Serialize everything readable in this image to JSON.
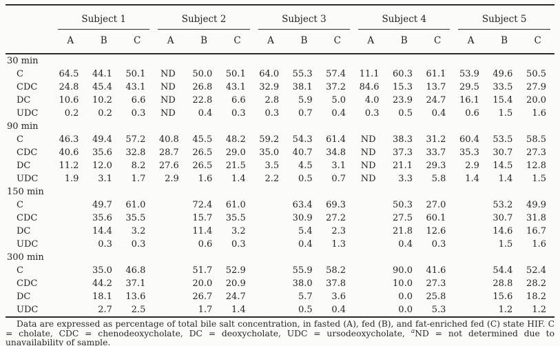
{
  "colors": {
    "background": "#fbfbf9",
    "text": "#222222",
    "rule": "#2a2a2a"
  },
  "table": {
    "subjects": [
      "Subject 1",
      "Subject 2",
      "Subject 3",
      "Subject 4",
      "Subject 5"
    ],
    "sub_columns": [
      "A",
      "B",
      "C"
    ],
    "groups": [
      {
        "label": "30 min",
        "rows": [
          {
            "label": "C",
            "values": [
              "64.5",
              "44.1",
              "50.1",
              "ND",
              "50.0",
              "50.1",
              "64.0",
              "55.3",
              "57.4",
              "11.1",
              "60.3",
              "61.1",
              "53.9",
              "49.6",
              "50.5"
            ]
          },
          {
            "label": "CDC",
            "values": [
              "24.8",
              "45.4",
              "43.1",
              "ND",
              "26.8",
              "43.1",
              "32.9",
              "38.1",
              "37.2",
              "84.6",
              "15.3",
              "13.7",
              "29.5",
              "33.5",
              "27.9"
            ]
          },
          {
            "label": "DC",
            "values": [
              "10.6",
              "10.2",
              "6.6",
              "ND",
              "22.8",
              "6.6",
              "2.8",
              "5.9",
              "5.0",
              "4.0",
              "23.9",
              "24.7",
              "16.1",
              "15.4",
              "20.0"
            ]
          },
          {
            "label": "UDC",
            "values": [
              "0.2",
              "0.2",
              "0.3",
              "ND",
              "0.4",
              "0.3",
              "0.3",
              "0.7",
              "0.4",
              "0.3",
              "0.5",
              "0.4",
              "0.6",
              "1.5",
              "1.6"
            ]
          }
        ]
      },
      {
        "label": "90 min",
        "rows": [
          {
            "label": "C",
            "values": [
              "46.3",
              "49.4",
              "57.2",
              "40.8",
              "45.5",
              "48.2",
              "59.2",
              "54.3",
              "61.4",
              "ND",
              "38.3",
              "31.2",
              "60.4",
              "53.5",
              "58.5"
            ]
          },
          {
            "label": "CDC",
            "values": [
              "40.6",
              "35.6",
              "32.8",
              "28.7",
              "26.5",
              "29.0",
              "35.0",
              "40.7",
              "34.8",
              "ND",
              "37.3",
              "33.7",
              "35.3",
              "30.7",
              "27.3"
            ]
          },
          {
            "label": "DC",
            "values": [
              "11.2",
              "12.0",
              "8.2",
              "27.6",
              "26.5",
              "21.5",
              "3.5",
              "4.5",
              "3.1",
              "ND",
              "21.1",
              "29.3",
              "2.9",
              "14.5",
              "12.8"
            ]
          },
          {
            "label": "UDC",
            "values": [
              "1.9",
              "3.1",
              "1.7",
              "2.9",
              "1.6",
              "1.4",
              "2.2",
              "0.5",
              "0.7",
              "ND",
              "3.3",
              "5.8",
              "1.4",
              "1.4",
              "1.5"
            ]
          }
        ]
      },
      {
        "label": "150 min",
        "rows": [
          {
            "label": "C",
            "values": [
              "",
              "49.7",
              "61.0",
              "",
              "72.4",
              "61.0",
              "",
              "63.4",
              "69.3",
              "",
              "50.3",
              "27.0",
              "",
              "53.2",
              "49.9"
            ]
          },
          {
            "label": "CDC",
            "values": [
              "",
              "35.6",
              "35.5",
              "",
              "15.7",
              "35.5",
              "",
              "30.9",
              "27.2",
              "",
              "27.5",
              "60.1",
              "",
              "30.7",
              "31.8"
            ]
          },
          {
            "label": "DC",
            "values": [
              "",
              "14.4",
              "3.2",
              "",
              "11.4",
              "3.2",
              "",
              "5.4",
              "2.3",
              "",
              "21.8",
              "12.6",
              "",
              "14.6",
              "16.7"
            ]
          },
          {
            "label": "UDC",
            "values": [
              "",
              "0.3",
              "0.3",
              "",
              "0.6",
              "0.3",
              "",
              "0.4",
              "1.3",
              "",
              "0.4",
              "0.3",
              "",
              "1.5",
              "1.6"
            ]
          }
        ]
      },
      {
        "label": "300 min",
        "rows": [
          {
            "label": "C",
            "values": [
              "",
              "35.0",
              "46.8",
              "",
              "51.7",
              "52.9",
              "",
              "55.9",
              "58.2",
              "",
              "90.0",
              "41.6",
              "",
              "54.4",
              "52.4"
            ]
          },
          {
            "label": "CDC",
            "values": [
              "",
              "44.2",
              "37.1",
              "",
              "20.0",
              "20.9",
              "",
              "38.0",
              "37.8",
              "",
              "10.0",
              "27.3",
              "",
              "28.8",
              "28.2"
            ]
          },
          {
            "label": "DC",
            "values": [
              "",
              "18.1",
              "13.6",
              "",
              "26.7",
              "24.7",
              "",
              "5.7",
              "3.6",
              "",
              "0.0",
              "25.8",
              "",
              "15.6",
              "18.2"
            ]
          },
          {
            "label": "UDC",
            "values": [
              "",
              "2.7",
              "2.5",
              "",
              "1.7",
              "1.4",
              "",
              "0.5",
              "0.4",
              "",
              "0.0",
              "5.3",
              "",
              "1.2",
              "1.2"
            ]
          }
        ]
      }
    ]
  },
  "footnote": {
    "part1": "Data are expressed as percentage of total bile salt concentration, in fasted (A), fed (B), and fat-enriched fed (C) state HIF. C = cholate, CDC = chenodeoxycholate, DC = deoxycholate, UDC = ursodeoxycholate, ",
    "sup": "a",
    "part2": "ND = not determined due to unavailability of sample."
  }
}
